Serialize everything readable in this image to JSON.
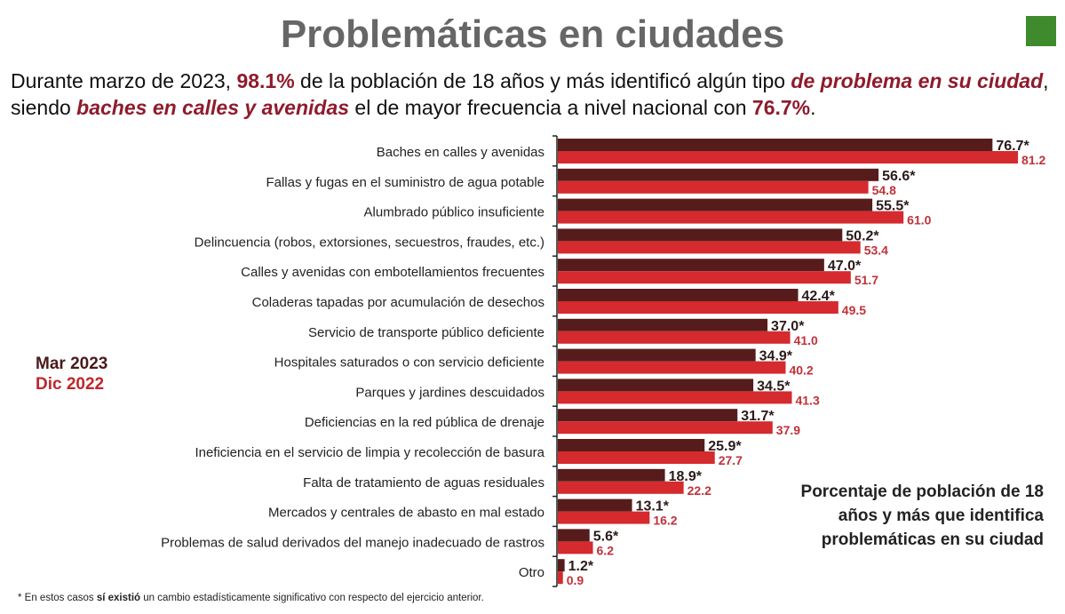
{
  "title": "Problemáticas en ciudades",
  "subtitle": {
    "p1": "Durante marzo de 2023, ",
    "h1": "98.1%",
    "p2": " de la población de 18 años y más identificó algún tipo ",
    "h2": "de problema en su ciudad",
    "p3": ", siendo ",
    "h3": "baches en calles y avenidas",
    "p4": " el de mayor frecuencia a nivel nacional con ",
    "h4": "76.7%",
    "p5": "."
  },
  "note": "Porcentaje de población de 18 años y más que identifica problemáticas en su ciudad",
  "footnote": {
    "star": "* En estos casos ",
    "bold": "sí existió",
    "rest": " un cambio estadísticamente significativo con respecto del ejercicio anterior."
  },
  "colors": {
    "mar2023": "#561c1c",
    "dic2022": "#d52a2e"
  },
  "chart_data": {
    "type": "bar",
    "orientation": "horizontal",
    "categories": [
      "Baches en calles y avenidas",
      "Fallas y fugas en el suministro de agua potable",
      "Alumbrado público insuficiente",
      "Delincuencia (robos, extorsiones, secuestros, fraudes, etc.)",
      "Calles y avenidas con embotellamientos frecuentes",
      "Coladeras tapadas por acumulación de desechos",
      "Servicio de transporte público deficiente",
      "Hospitales saturados o con servicio deficiente",
      "Parques y jardines descuidados",
      "Deficiencias en la red pública de drenaje",
      "Ineficiencia en el servicio de limpia y recolección de basura",
      "Falta de tratamiento de aguas residuales",
      "Mercados y centrales de abasto en mal estado",
      "Problemas de salud derivados del manejo inadecuado de rastros",
      "Otro"
    ],
    "series": [
      {
        "name": "Mar 2023",
        "values": [
          76.7,
          56.6,
          55.5,
          50.2,
          47.0,
          42.4,
          37.0,
          34.9,
          34.5,
          31.7,
          25.9,
          18.9,
          13.1,
          5.6,
          1.2
        ],
        "labels": [
          "76.7*",
          "56.6*",
          "55.5*",
          "50.2*",
          "47.0*",
          "42.4*",
          "37.0*",
          "34.9*",
          "34.5*",
          "31.7*",
          "25.9*",
          "18.9*",
          "13.1*",
          "5.6*",
          "1.2*"
        ]
      },
      {
        "name": "Dic 2022",
        "values": [
          81.2,
          54.8,
          61.0,
          53.4,
          51.7,
          49.5,
          41.0,
          40.2,
          41.3,
          37.9,
          27.7,
          22.2,
          16.2,
          6.2,
          0.9
        ],
        "labels": [
          "81.2",
          "54.8",
          "61.0",
          "53.4",
          "51.7",
          "49.5",
          "41.0",
          "40.2",
          "41.3",
          "37.9",
          "27.7",
          "22.2",
          "16.2",
          "6.2",
          "0.9"
        ]
      }
    ],
    "xlim": [
      0,
      85
    ],
    "grid": false,
    "legend_position": "left"
  }
}
